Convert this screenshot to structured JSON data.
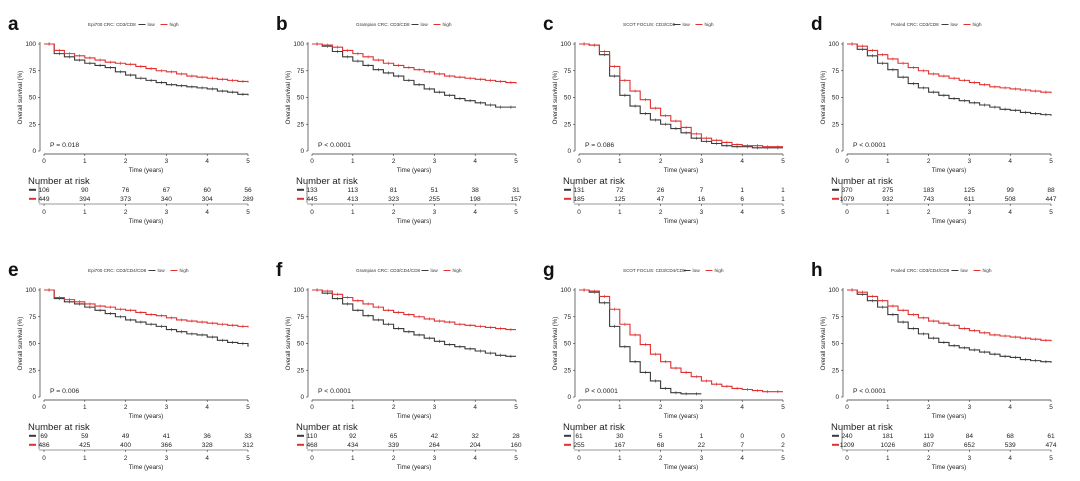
{
  "colors": {
    "low": "#3a3a3a",
    "high": "#e03030",
    "axis": "#333333"
  },
  "common": {
    "xlabel": "Time (years)",
    "ylabel": "Overall survival (%)",
    "nar_title": "Number at risk",
    "legend_low": "low",
    "legend_high": "high"
  },
  "chart_data": [
    {
      "type": "line",
      "letter": "a",
      "title": "Epi700 CRC: CD3/CD8",
      "xlim": [
        0,
        5
      ],
      "ylim": [
        0,
        100
      ],
      "x_ticks": [
        "0",
        "1",
        "2",
        "3",
        "4",
        "5"
      ],
      "y_ticks": [
        "0",
        "25",
        "50",
        "75",
        "100"
      ],
      "p_value": "P = 0.018",
      "series": [
        {
          "name": "low",
          "x": [
            0,
            0.25,
            0.5,
            0.75,
            1,
            1.25,
            1.5,
            1.75,
            2,
            2.25,
            2.5,
            2.75,
            3,
            3.25,
            3.5,
            3.75,
            4,
            4.25,
            4.5,
            4.75,
            5
          ],
          "y": [
            100,
            91,
            88,
            85,
            82,
            80,
            78,
            74,
            71,
            68,
            66,
            64,
            62,
            61,
            60,
            59,
            58,
            56,
            55,
            53,
            52
          ]
        },
        {
          "name": "high",
          "x": [
            0,
            0.25,
            0.5,
            0.75,
            1,
            1.25,
            1.5,
            1.75,
            2,
            2.25,
            2.5,
            2.75,
            3,
            3.25,
            3.5,
            3.75,
            4,
            4.25,
            4.5,
            4.75,
            5
          ],
          "y": [
            100,
            94,
            91,
            89,
            87,
            85,
            83,
            82,
            81,
            79,
            77,
            75,
            74,
            72,
            70,
            69,
            68,
            67,
            66,
            65,
            64
          ]
        }
      ],
      "risk": {
        "low": [
          "106",
          "90",
          "76",
          "67",
          "60",
          "56"
        ],
        "high": [
          "449",
          "394",
          "373",
          "340",
          "304",
          "289"
        ]
      }
    },
    {
      "type": "line",
      "letter": "b",
      "title": "Grampian CRC: CD3/CD8",
      "xlim": [
        0,
        5
      ],
      "ylim": [
        0,
        100
      ],
      "x_ticks": [
        "0",
        "1",
        "2",
        "3",
        "4",
        "5"
      ],
      "y_ticks": [
        "0",
        "25",
        "50",
        "75",
        "100"
      ],
      "p_value": "P < 0.0001",
      "series": [
        {
          "name": "low",
          "x": [
            0,
            0.25,
            0.5,
            0.75,
            1,
            1.25,
            1.5,
            1.75,
            2,
            2.25,
            2.5,
            2.75,
            3,
            3.25,
            3.5,
            3.75,
            4,
            4.25,
            4.5,
            4.75,
            5
          ],
          "y": [
            100,
            98,
            93,
            88,
            84,
            80,
            76,
            73,
            70,
            66,
            62,
            58,
            55,
            52,
            49,
            47,
            45,
            43,
            41,
            41,
            41
          ]
        },
        {
          "name": "high",
          "x": [
            0,
            0.25,
            0.5,
            0.75,
            1,
            1.25,
            1.5,
            1.75,
            2,
            2.25,
            2.5,
            2.75,
            3,
            3.25,
            3.5,
            3.75,
            4,
            4.25,
            4.5,
            4.75,
            5
          ],
          "y": [
            100,
            99,
            97,
            94,
            91,
            88,
            85,
            82,
            80,
            78,
            76,
            74,
            72,
            70,
            69,
            68,
            67,
            66,
            65,
            64,
            63
          ]
        }
      ],
      "risk": {
        "low": [
          "133",
          "113",
          "81",
          "51",
          "38",
          "31"
        ],
        "high": [
          "445",
          "413",
          "323",
          "255",
          "198",
          "157"
        ]
      }
    },
    {
      "type": "line",
      "letter": "c",
      "title": "SCOT FOCUS: CD3/CD8",
      "xlim": [
        0,
        5
      ],
      "ylim": [
        0,
        100
      ],
      "x_ticks": [
        "0",
        "1",
        "2",
        "3",
        "4",
        "5"
      ],
      "y_ticks": [
        "0",
        "25",
        "50",
        "75",
        "100"
      ],
      "p_value": "P = 0.086",
      "series": [
        {
          "name": "low",
          "x": [
            0,
            0.25,
            0.5,
            0.75,
            1,
            1.25,
            1.5,
            1.75,
            2,
            2.25,
            2.5,
            2.75,
            3,
            3.25,
            3.5,
            3.75,
            4,
            4.25,
            4.5,
            4.75,
            5
          ],
          "y": [
            100,
            99,
            90,
            70,
            52,
            42,
            35,
            29,
            25,
            21,
            17,
            12,
            9,
            7,
            5,
            4,
            4,
            3,
            3,
            3,
            3
          ]
        },
        {
          "name": "high",
          "x": [
            0,
            0.25,
            0.5,
            0.75,
            1,
            1.25,
            1.5,
            1.75,
            2,
            2.25,
            2.5,
            2.75,
            3,
            3.25,
            3.5,
            3.75,
            4,
            4.25,
            4.5,
            4.75,
            5
          ],
          "y": [
            100,
            99,
            93,
            79,
            66,
            56,
            48,
            40,
            33,
            28,
            22,
            16,
            12,
            10,
            8,
            6,
            5,
            5,
            4,
            4,
            4
          ]
        }
      ],
      "risk": {
        "low": [
          "131",
          "72",
          "26",
          "7",
          "1",
          "1"
        ],
        "high": [
          "185",
          "125",
          "47",
          "16",
          "6",
          "1"
        ]
      }
    },
    {
      "type": "line",
      "letter": "d",
      "title": "Pooled CRC: CD3/CD8",
      "xlim": [
        0,
        5
      ],
      "ylim": [
        0,
        100
      ],
      "x_ticks": [
        "0",
        "1",
        "2",
        "3",
        "4",
        "5"
      ],
      "y_ticks": [
        "0",
        "25",
        "50",
        "75",
        "100"
      ],
      "p_value": "P < 0.0001",
      "series": [
        {
          "name": "low",
          "x": [
            0,
            0.25,
            0.5,
            0.75,
            1,
            1.25,
            1.5,
            1.75,
            2,
            2.25,
            2.5,
            2.75,
            3,
            3.25,
            3.5,
            3.75,
            4,
            4.25,
            4.5,
            4.75,
            5
          ],
          "y": [
            100,
            95,
            89,
            82,
            76,
            69,
            63,
            59,
            55,
            52,
            49,
            47,
            45,
            43,
            41,
            39,
            38,
            36,
            35,
            34,
            33
          ]
        },
        {
          "name": "high",
          "x": [
            0,
            0.25,
            0.5,
            0.75,
            1,
            1.25,
            1.5,
            1.75,
            2,
            2.25,
            2.5,
            2.75,
            3,
            3.25,
            3.5,
            3.75,
            4,
            4.25,
            4.5,
            4.75,
            5
          ],
          "y": [
            100,
            98,
            94,
            90,
            86,
            82,
            78,
            75,
            72,
            70,
            68,
            66,
            64,
            62,
            60,
            59,
            58,
            57,
            56,
            55,
            54
          ]
        }
      ],
      "risk": {
        "low": [
          "370",
          "275",
          "183",
          "125",
          "99",
          "88"
        ],
        "high": [
          "1079",
          "932",
          "743",
          "611",
          "508",
          "447"
        ]
      }
    },
    {
      "type": "line",
      "letter": "e",
      "title": "Epi700 CRC: CD3/CD4/CD8",
      "xlim": [
        0,
        5
      ],
      "ylim": [
        0,
        100
      ],
      "x_ticks": [
        "0",
        "1",
        "2",
        "3",
        "4",
        "5"
      ],
      "y_ticks": [
        "0",
        "25",
        "50",
        "75",
        "100"
      ],
      "p_value": "P = 0.006",
      "series": [
        {
          "name": "low",
          "x": [
            0,
            0.25,
            0.5,
            0.75,
            1,
            1.25,
            1.5,
            1.75,
            2,
            2.25,
            2.5,
            2.75,
            3,
            3.25,
            3.5,
            3.75,
            4,
            4.25,
            4.5,
            4.75,
            5
          ],
          "y": [
            100,
            92,
            89,
            87,
            84,
            81,
            78,
            75,
            72,
            70,
            68,
            66,
            63,
            61,
            59,
            58,
            56,
            53,
            51,
            50,
            47
          ]
        },
        {
          "name": "high",
          "x": [
            0,
            0.25,
            0.5,
            0.75,
            1,
            1.25,
            1.5,
            1.75,
            2,
            2.25,
            2.5,
            2.75,
            3,
            3.25,
            3.5,
            3.75,
            4,
            4.25,
            4.5,
            4.75,
            5
          ],
          "y": [
            100,
            93,
            91,
            89,
            87,
            85,
            84,
            82,
            81,
            79,
            77,
            76,
            74,
            72,
            71,
            70,
            69,
            68,
            67,
            66,
            65
          ]
        }
      ],
      "risk": {
        "low": [
          "69",
          "59",
          "49",
          "41",
          "36",
          "33"
        ],
        "high": [
          "486",
          "425",
          "400",
          "366",
          "328",
          "312"
        ]
      }
    },
    {
      "type": "line",
      "letter": "f",
      "title": "Grampian CRC: CD3/CD4/CD8",
      "xlim": [
        0,
        5
      ],
      "ylim": [
        0,
        100
      ],
      "x_ticks": [
        "0",
        "1",
        "2",
        "3",
        "4",
        "5"
      ],
      "y_ticks": [
        "0",
        "25",
        "50",
        "75",
        "100"
      ],
      "p_value": "P < 0.0001",
      "series": [
        {
          "name": "low",
          "x": [
            0,
            0.25,
            0.5,
            0.75,
            1,
            1.25,
            1.5,
            1.75,
            2,
            2.25,
            2.5,
            2.75,
            3,
            3.25,
            3.5,
            3.75,
            4,
            4.25,
            4.5,
            4.75,
            5
          ],
          "y": [
            100,
            97,
            92,
            87,
            81,
            76,
            72,
            68,
            64,
            61,
            58,
            55,
            52,
            49,
            47,
            45,
            43,
            41,
            39,
            38,
            38
          ]
        },
        {
          "name": "high",
          "x": [
            0,
            0.25,
            0.5,
            0.75,
            1,
            1.25,
            1.5,
            1.75,
            2,
            2.25,
            2.5,
            2.75,
            3,
            3.25,
            3.5,
            3.75,
            4,
            4.25,
            4.5,
            4.75,
            5
          ],
          "y": [
            100,
            99,
            96,
            93,
            90,
            87,
            84,
            81,
            79,
            77,
            75,
            73,
            71,
            70,
            68,
            67,
            66,
            65,
            64,
            63,
            63
          ]
        }
      ],
      "risk": {
        "low": [
          "110",
          "92",
          "65",
          "42",
          "32",
          "28"
        ],
        "high": [
          "468",
          "434",
          "339",
          "264",
          "204",
          "160"
        ]
      }
    },
    {
      "type": "line",
      "letter": "g",
      "title": "SCOT FOCUS: CD3/CD4/CD8",
      "xlim": [
        0,
        5
      ],
      "ylim": [
        0,
        100
      ],
      "x_ticks": [
        "0",
        "1",
        "2",
        "3",
        "4",
        "5"
      ],
      "y_ticks": [
        "0",
        "25",
        "50",
        "75",
        "100"
      ],
      "p_value": "P < 0.0001",
      "series": [
        {
          "name": "low",
          "x": [
            0,
            0.25,
            0.5,
            0.75,
            1,
            1.25,
            1.5,
            1.75,
            2,
            2.25,
            2.5,
            2.75,
            3
          ],
          "y": [
            100,
            98,
            88,
            66,
            47,
            33,
            23,
            15,
            8,
            4,
            3,
            3,
            3
          ]
        },
        {
          "name": "high",
          "x": [
            0,
            0.25,
            0.5,
            0.75,
            1,
            1.25,
            1.5,
            1.75,
            2,
            2.25,
            2.5,
            2.75,
            3,
            3.25,
            3.5,
            3.75,
            4,
            4.25,
            4.5,
            4.75,
            5
          ],
          "y": [
            100,
            99,
            94,
            82,
            68,
            58,
            49,
            40,
            33,
            27,
            23,
            19,
            15,
            12,
            10,
            8,
            7,
            6,
            5,
            5,
            5
          ]
        }
      ],
      "risk": {
        "low": [
          "61",
          "30",
          "5",
          "1",
          "0",
          "0"
        ],
        "high": [
          "255",
          "167",
          "68",
          "22",
          "7",
          "2"
        ]
      }
    },
    {
      "type": "line",
      "letter": "h",
      "title": "Pooled CRC: CD3/CD4/CD8",
      "xlim": [
        0,
        5
      ],
      "ylim": [
        0,
        100
      ],
      "x_ticks": [
        "0",
        "1",
        "2",
        "3",
        "4",
        "5"
      ],
      "y_ticks": [
        "0",
        "25",
        "50",
        "75",
        "100"
      ],
      "p_value": "P < 0.0001",
      "series": [
        {
          "name": "low",
          "x": [
            0,
            0.25,
            0.5,
            0.75,
            1,
            1.25,
            1.5,
            1.75,
            2,
            2.25,
            2.5,
            2.75,
            3,
            3.25,
            3.5,
            3.75,
            4,
            4.25,
            4.5,
            4.75,
            5
          ],
          "y": [
            100,
            96,
            90,
            84,
            77,
            70,
            64,
            59,
            55,
            51,
            48,
            46,
            44,
            42,
            40,
            38,
            37,
            35,
            34,
            33,
            32
          ]
        },
        {
          "name": "high",
          "x": [
            0,
            0.25,
            0.5,
            0.75,
            1,
            1.25,
            1.5,
            1.75,
            2,
            2.25,
            2.5,
            2.75,
            3,
            3.25,
            3.5,
            3.75,
            4,
            4.25,
            4.5,
            4.75,
            5
          ],
          "y": [
            100,
            98,
            94,
            90,
            85,
            81,
            77,
            74,
            71,
            69,
            67,
            64,
            62,
            60,
            58,
            57,
            56,
            55,
            54,
            53,
            52
          ]
        }
      ],
      "risk": {
        "low": [
          "240",
          "181",
          "119",
          "84",
          "68",
          "61"
        ],
        "high": [
          "1209",
          "1026",
          "807",
          "652",
          "539",
          "474"
        ]
      }
    }
  ]
}
